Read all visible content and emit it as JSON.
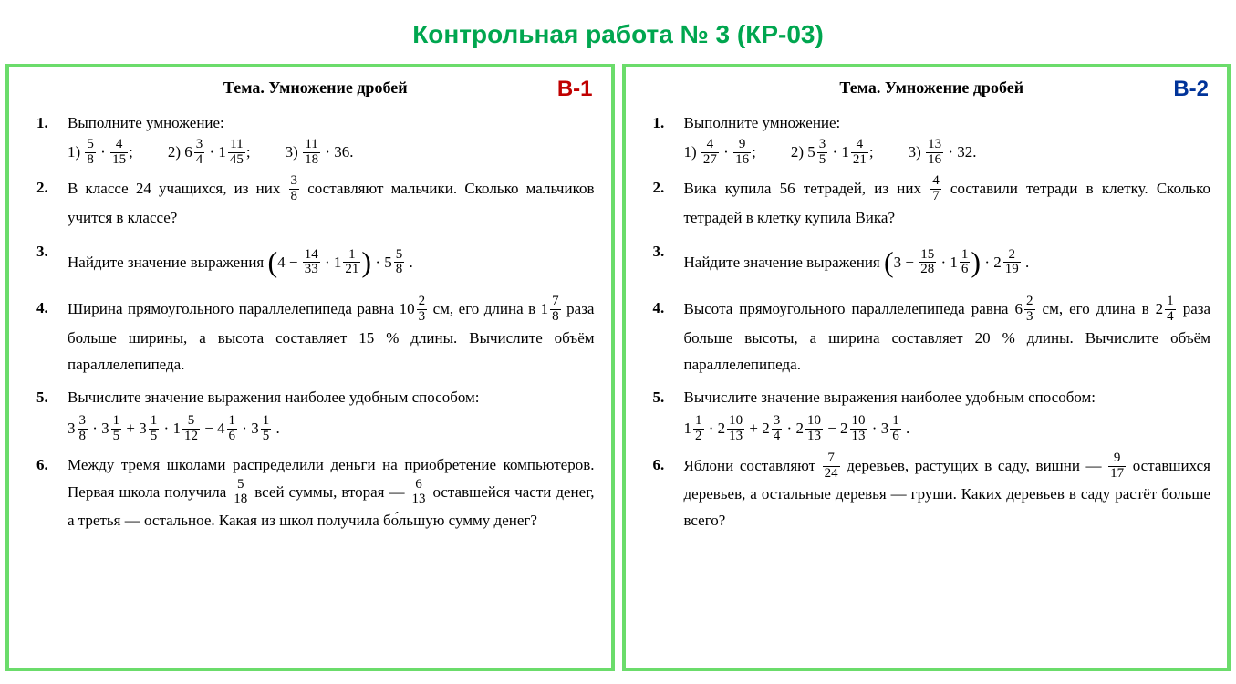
{
  "page_title": "Контрольная работа № 3 (КР-03)",
  "title_color": "#00a64f",
  "border_color": "#6bdc6b",
  "variants": [
    {
      "label": "В-1",
      "label_color": "#c00000",
      "topic": "Тема. Умножение дробей",
      "tasks": [
        {
          "num": "1.",
          "intro": "Выполните умножение:",
          "subparts": [
            {
              "label": "1)",
              "expr": {
                "type": "product",
                "items": [
                  {
                    "type": "frac",
                    "n": "5",
                    "d": "8"
                  },
                  {
                    "type": "frac",
                    "n": "4",
                    "d": "15"
                  }
                ],
                "tail": ";"
              }
            },
            {
              "label": "2)",
              "expr": {
                "type": "product",
                "items": [
                  {
                    "type": "mixed",
                    "w": "6",
                    "n": "3",
                    "d": "4"
                  },
                  {
                    "type": "mixed",
                    "w": "1",
                    "n": "11",
                    "d": "45"
                  }
                ],
                "tail": ";"
              }
            },
            {
              "label": "3)",
              "expr": {
                "type": "product",
                "items": [
                  {
                    "type": "frac",
                    "n": "11",
                    "d": "18"
                  },
                  {
                    "type": "int",
                    "v": "36"
                  }
                ],
                "tail": "."
              }
            }
          ]
        },
        {
          "num": "2.",
          "html": "В классе 24 учащихся, из них {frac:3:8}  составляют мальчики. Сколько мальчиков учится в классе?"
        },
        {
          "num": "3.",
          "html": "Найдите значение выражения {lp}4 − {frac:14:33} · {mixed:1:1:21}{rp} · {mixed:5:5:8} ."
        },
        {
          "num": "4.",
          "html": "Ширина прямоугольного параллелепипеда равна {mixed:10:2:3} см, его длина в {mixed:1:7:8} раза больше ширины, а высота составляет 15 % длины. Вычислите объём параллелепипеда."
        },
        {
          "num": "5.",
          "html": "Вычислите значение выражения наиболее удобным способом:",
          "mathline": "{mixed:3:3:8} · {mixed:3:1:5} + {mixed:3:1:5} · {mixed:1:5:12} − {mixed:4:1:6} · {mixed:3:1:5} ."
        },
        {
          "num": "6.",
          "html": "Между тремя школами распределили деньги на приобретение компьютеров. Первая школа получила {frac:5:18} всей суммы, вторая — {frac:6:13} оставшейся части денег, а третья — остальное. Какая из школ получила бо́льшую сумму денег?"
        }
      ]
    },
    {
      "label": "В-2",
      "label_color": "#003399",
      "topic": "Тема. Умножение дробей",
      "tasks": [
        {
          "num": "1.",
          "intro": "Выполните умножение:",
          "subparts": [
            {
              "label": "1)",
              "expr": {
                "type": "product",
                "items": [
                  {
                    "type": "frac",
                    "n": "4",
                    "d": "27"
                  },
                  {
                    "type": "frac",
                    "n": "9",
                    "d": "16"
                  }
                ],
                "tail": ";"
              }
            },
            {
              "label": "2)",
              "expr": {
                "type": "product",
                "items": [
                  {
                    "type": "mixed",
                    "w": "5",
                    "n": "3",
                    "d": "5"
                  },
                  {
                    "type": "mixed",
                    "w": "1",
                    "n": "4",
                    "d": "21"
                  }
                ],
                "tail": ";"
              }
            },
            {
              "label": "3)",
              "expr": {
                "type": "product",
                "items": [
                  {
                    "type": "frac",
                    "n": "13",
                    "d": "16"
                  },
                  {
                    "type": "int",
                    "v": "32"
                  }
                ],
                "tail": "."
              }
            }
          ]
        },
        {
          "num": "2.",
          "html": "Вика купила 56 тетрадей, из них {frac:4:7} составили тетради в клетку. Сколько тетрадей в клетку купила Вика?"
        },
        {
          "num": "3.",
          "html": "Найдите значение выражения {lp}3 − {frac:15:28} · {mixed:1:1:6}{rp} · {mixed:2:2:19} ."
        },
        {
          "num": "4.",
          "html": "Высота прямоугольного параллелепипеда равна {mixed:6:2:3} см, его длина в {mixed:2:1:4} раза больше высоты, а ширина составляет 20 % длины. Вычислите объём параллелепипеда."
        },
        {
          "num": "5.",
          "html": "Вычислите значение выражения наиболее удобным способом:",
          "mathline": "{mixed:1:1:2} · {mixed:2:10:13} + {mixed:2:3:4} · {mixed:2:10:13} − {mixed:2:10:13} · {mixed:3:1:6} ."
        },
        {
          "num": "6.",
          "html": "Яблони составляют {frac:7:24} деревьев, растущих в саду, вишни — {frac:9:17} оставшихся деревьев, а остальные деревья — груши. Каких деревьев в саду растёт больше всего?"
        }
      ]
    }
  ]
}
